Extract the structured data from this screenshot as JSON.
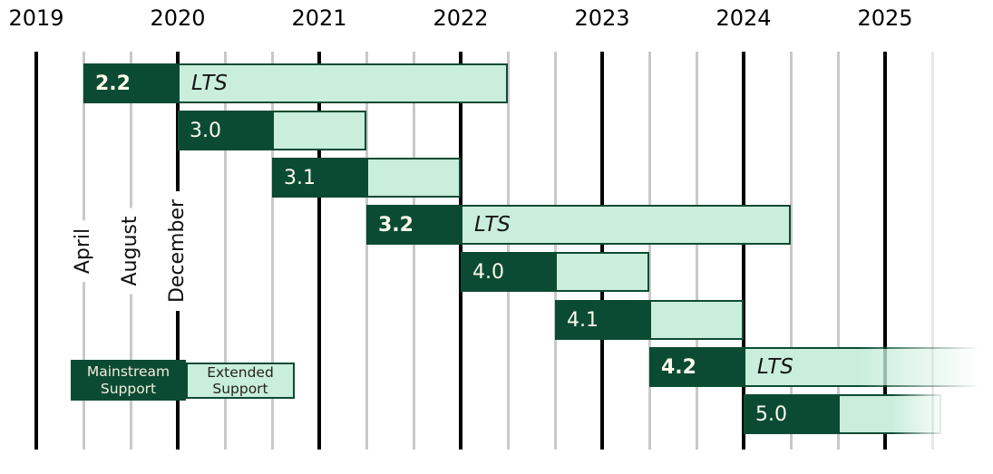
{
  "chart_data": {
    "type": "gantt",
    "description": "Release support timeline with mainstream and extended support phases",
    "x_axis": {
      "year_labels": [
        "2019",
        "2020",
        "2021",
        "2022",
        "2023",
        "2024",
        "2025"
      ],
      "month_gridline_labels": [
        "April",
        "August",
        "December"
      ],
      "gridline_interval_months": 4
    },
    "releases": [
      {
        "version": "2.2",
        "lts": true,
        "lts_label": "LTS",
        "start": "April 2019",
        "mainstream_end": "December 2019",
        "extended_end": "April 2022",
        "fades_out": false
      },
      {
        "version": "3.0",
        "lts": false,
        "lts_label": "",
        "start": "December 2019",
        "mainstream_end": "August 2020",
        "extended_end": "April 2021",
        "fades_out": false
      },
      {
        "version": "3.1",
        "lts": false,
        "lts_label": "",
        "start": "August 2020",
        "mainstream_end": "April 2021",
        "extended_end": "December 2021",
        "fades_out": false
      },
      {
        "version": "3.2",
        "lts": true,
        "lts_label": "LTS",
        "start": "April 2021",
        "mainstream_end": "December 2021",
        "extended_end": "April 2024",
        "fades_out": false
      },
      {
        "version": "4.0",
        "lts": false,
        "lts_label": "",
        "start": "December 2021",
        "mainstream_end": "August 2022",
        "extended_end": "April 2023",
        "fades_out": false
      },
      {
        "version": "4.1",
        "lts": false,
        "lts_label": "",
        "start": "August 2022",
        "mainstream_end": "April 2023",
        "extended_end": "December 2023",
        "fades_out": false
      },
      {
        "version": "4.2",
        "lts": true,
        "lts_label": "LTS",
        "start": "April 2023",
        "mainstream_end": "December 2023",
        "extended_end": null,
        "fades_out": true
      },
      {
        "version": "5.0",
        "lts": false,
        "lts_label": "",
        "start": "December 2023",
        "mainstream_end": "August 2024",
        "extended_end": "April 2025",
        "fades_out": true
      }
    ],
    "legend": {
      "mainstream": [
        "Mainstream",
        "Support"
      ],
      "extended": [
        "Extended",
        "Support"
      ]
    },
    "colors": {
      "mainstream_fill": "#0C4B33",
      "extended_fill": "#C9EEDB",
      "bar_text": "#FCFAEC",
      "lts_text": "#151515",
      "grid_major": "#000000",
      "grid_minor": "#C9C9C9",
      "grid_minor_faint": "#E8E8E8",
      "background": "#FFFFFF"
    }
  }
}
